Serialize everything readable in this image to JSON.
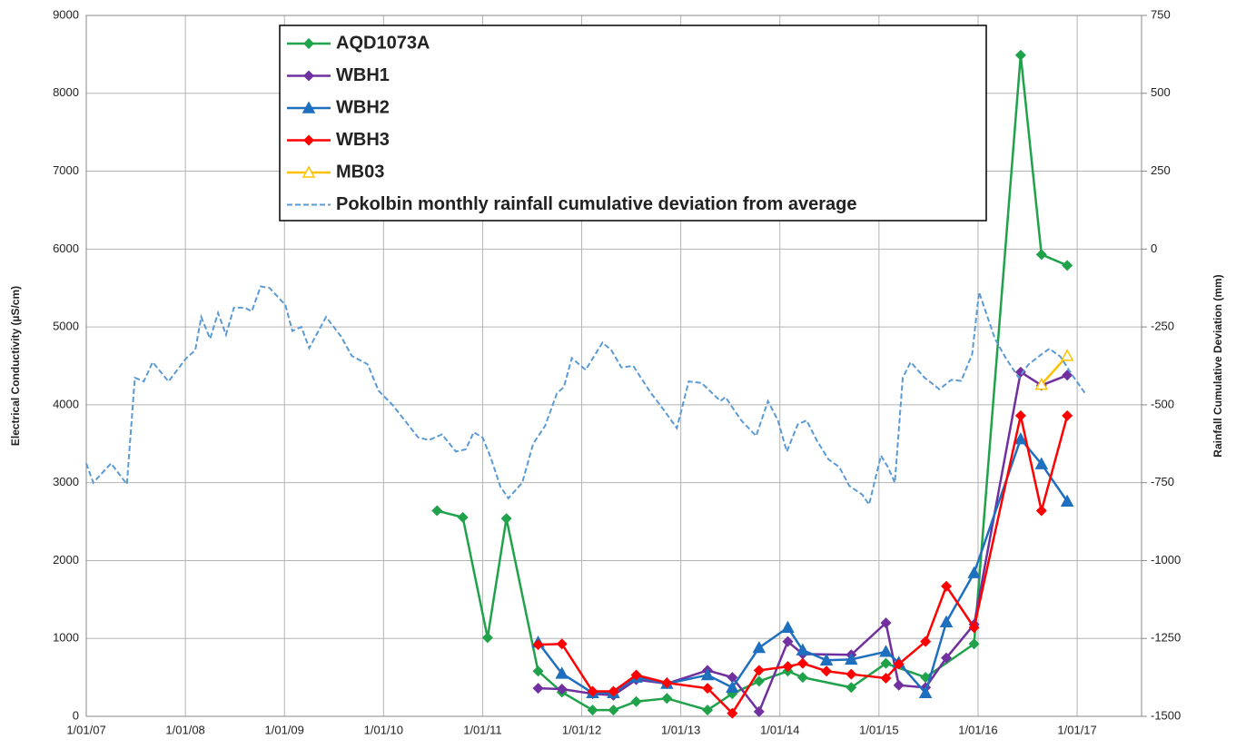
{
  "chart_data": {
    "type": "line",
    "y_label": "Electrical Conductivity (µS/cm)",
    "y2_label": "Rainfall Cumulative Deviation (mm)",
    "xlim": [
      2007,
      2017.65
    ],
    "xticks": [
      {
        "value": 2007,
        "label": "1/01/07"
      },
      {
        "value": 2008,
        "label": "1/01/08"
      },
      {
        "value": 2009,
        "label": "1/01/09"
      },
      {
        "value": 2010,
        "label": "1/01/10"
      },
      {
        "value": 2011,
        "label": "1/01/11"
      },
      {
        "value": 2012,
        "label": "1/01/12"
      },
      {
        "value": 2013,
        "label": "1/01/13"
      },
      {
        "value": 2014,
        "label": "1/01/14"
      },
      {
        "value": 2015,
        "label": "1/01/15"
      },
      {
        "value": 2016,
        "label": "1/01/16"
      },
      {
        "value": 2017,
        "label": "1/01/17"
      }
    ],
    "ylim": [
      0,
      9000
    ],
    "yticks": [
      0,
      1000,
      2000,
      3000,
      4000,
      5000,
      6000,
      7000,
      8000,
      9000
    ],
    "y2lim": [
      -1500,
      750
    ],
    "y2ticks": [
      -1500,
      -1250,
      -1000,
      -750,
      -500,
      -250,
      0,
      250,
      500,
      750
    ],
    "grid": true,
    "series": [
      {
        "name": "AQD1073A",
        "color": "#1fa24a",
        "marker": "diamond",
        "x": [
          2010.54,
          2010.8,
          2011.05,
          2011.24,
          2011.56,
          2011.8,
          2012.11,
          2012.32,
          2012.55,
          2012.86,
          2013.27,
          2013.52,
          2013.79,
          2014.08,
          2014.23,
          2014.72,
          2015.07,
          2015.47,
          2015.96,
          2016.43,
          2016.64,
          2016.9
        ],
        "values": [
          2640,
          2555,
          1010,
          2540,
          580,
          310,
          80,
          80,
          190,
          230,
          80,
          290,
          450,
          580,
          500,
          370,
          680,
          500,
          930,
          8490,
          5930,
          5790
        ]
      },
      {
        "name": "WBH1",
        "color": "#7030a0",
        "marker": "diamond",
        "x": [
          2011.56,
          2011.8,
          2012.11,
          2012.32,
          2012.55,
          2012.86,
          2013.27,
          2013.52,
          2013.79,
          2014.08,
          2014.23,
          2014.72,
          2015.07,
          2015.2,
          2015.47,
          2015.68,
          2015.96,
          2016.43,
          2016.64,
          2016.9
        ],
        "values": [
          360,
          350,
          290,
          270,
          470,
          420,
          590,
          500,
          60,
          960,
          800,
          790,
          1200,
          400,
          370,
          750,
          1180,
          4420,
          4250,
          4380
        ]
      },
      {
        "name": "WBH2",
        "color": "#1f6fbf",
        "marker": "triangle",
        "x": [
          2011.56,
          2011.8,
          2012.11,
          2012.32,
          2012.55,
          2012.86,
          2013.27,
          2013.52,
          2013.79,
          2014.08,
          2014.23,
          2014.47,
          2014.72,
          2015.07,
          2015.2,
          2015.47,
          2015.68,
          2015.96,
          2016.43,
          2016.64,
          2016.9
        ],
        "values": [
          950,
          550,
          300,
          300,
          500,
          420,
          530,
          370,
          880,
          1140,
          850,
          720,
          730,
          830,
          690,
          300,
          1210,
          1840,
          3560,
          3240,
          2760
        ]
      },
      {
        "name": "WBH3",
        "color": "#ff0000",
        "marker": "diamond",
        "x": [
          2011.56,
          2011.8,
          2012.11,
          2012.32,
          2012.55,
          2012.86,
          2013.27,
          2013.52,
          2013.79,
          2014.08,
          2014.23,
          2014.47,
          2014.72,
          2015.07,
          2015.2,
          2015.47,
          2015.68,
          2015.96,
          2016.43,
          2016.64,
          2016.9
        ],
        "values": [
          920,
          930,
          320,
          320,
          530,
          430,
          360,
          40,
          590,
          640,
          680,
          580,
          540,
          490,
          670,
          960,
          1670,
          1140,
          3860,
          2640,
          3860
        ]
      },
      {
        "name": "MB03",
        "color": "#ffc000",
        "marker": "triangle",
        "x": [
          2016.64,
          2016.9
        ],
        "values": [
          4260,
          4630
        ]
      },
      {
        "name": "Pokolbin monthly rainfall cumulative deviation from average",
        "color": "#5b9bd5",
        "dash": true,
        "axis": "y2",
        "x": [
          2007.0,
          2007.07,
          2007.25,
          2007.41,
          2007.49,
          2007.58,
          2007.67,
          2007.83,
          2008.01,
          2008.1,
          2008.16,
          2008.25,
          2008.33,
          2008.41,
          2008.49,
          2008.6,
          2008.67,
          2008.76,
          2008.85,
          2009.01,
          2009.08,
          2009.17,
          2009.25,
          2009.42,
          2009.57,
          2009.68,
          2009.84,
          2009.95,
          2010.09,
          2010.35,
          2010.46,
          2010.59,
          2010.73,
          2010.83,
          2010.91,
          2011.0,
          2011.08,
          2011.18,
          2011.26,
          2011.4,
          2011.51,
          2011.63,
          2011.75,
          2011.82,
          2011.9,
          2012.04,
          2012.21,
          2012.3,
          2012.4,
          2012.52,
          2012.7,
          2012.82,
          2012.96,
          2013.08,
          2013.21,
          2013.4,
          2013.45,
          2013.61,
          2013.76,
          2013.88,
          2013.98,
          2014.07,
          2014.18,
          2014.27,
          2014.37,
          2014.49,
          2014.6,
          2014.7,
          2014.83,
          2014.9,
          2015.02,
          2015.09,
          2015.16,
          2015.24,
          2015.32,
          2015.46,
          2015.61,
          2015.73,
          2015.83,
          2015.94,
          2016.01,
          2016.17,
          2016.28,
          2016.41,
          2016.51,
          2016.64,
          2016.72,
          2016.83,
          2016.94,
          2017.08
        ],
        "values": [
          -688,
          -750,
          -688,
          -755,
          -413,
          -425,
          -363,
          -425,
          -350,
          -325,
          -218,
          -288,
          -205,
          -275,
          -188,
          -188,
          -200,
          -120,
          -125,
          -180,
          -263,
          -250,
          -318,
          -218,
          -280,
          -343,
          -370,
          -455,
          -500,
          -605,
          -613,
          -595,
          -650,
          -643,
          -588,
          -605,
          -668,
          -763,
          -800,
          -750,
          -625,
          -568,
          -463,
          -443,
          -350,
          -388,
          -300,
          -325,
          -380,
          -375,
          -463,
          -513,
          -575,
          -425,
          -430,
          -488,
          -475,
          -550,
          -600,
          -488,
          -550,
          -650,
          -563,
          -550,
          -613,
          -675,
          -700,
          -760,
          -788,
          -820,
          -663,
          -700,
          -750,
          -413,
          -363,
          -413,
          -450,
          -420,
          -423,
          -338,
          -138,
          -288,
          -350,
          -413,
          -370,
          -338,
          -320,
          -345,
          -400,
          -463
        ]
      }
    ]
  }
}
